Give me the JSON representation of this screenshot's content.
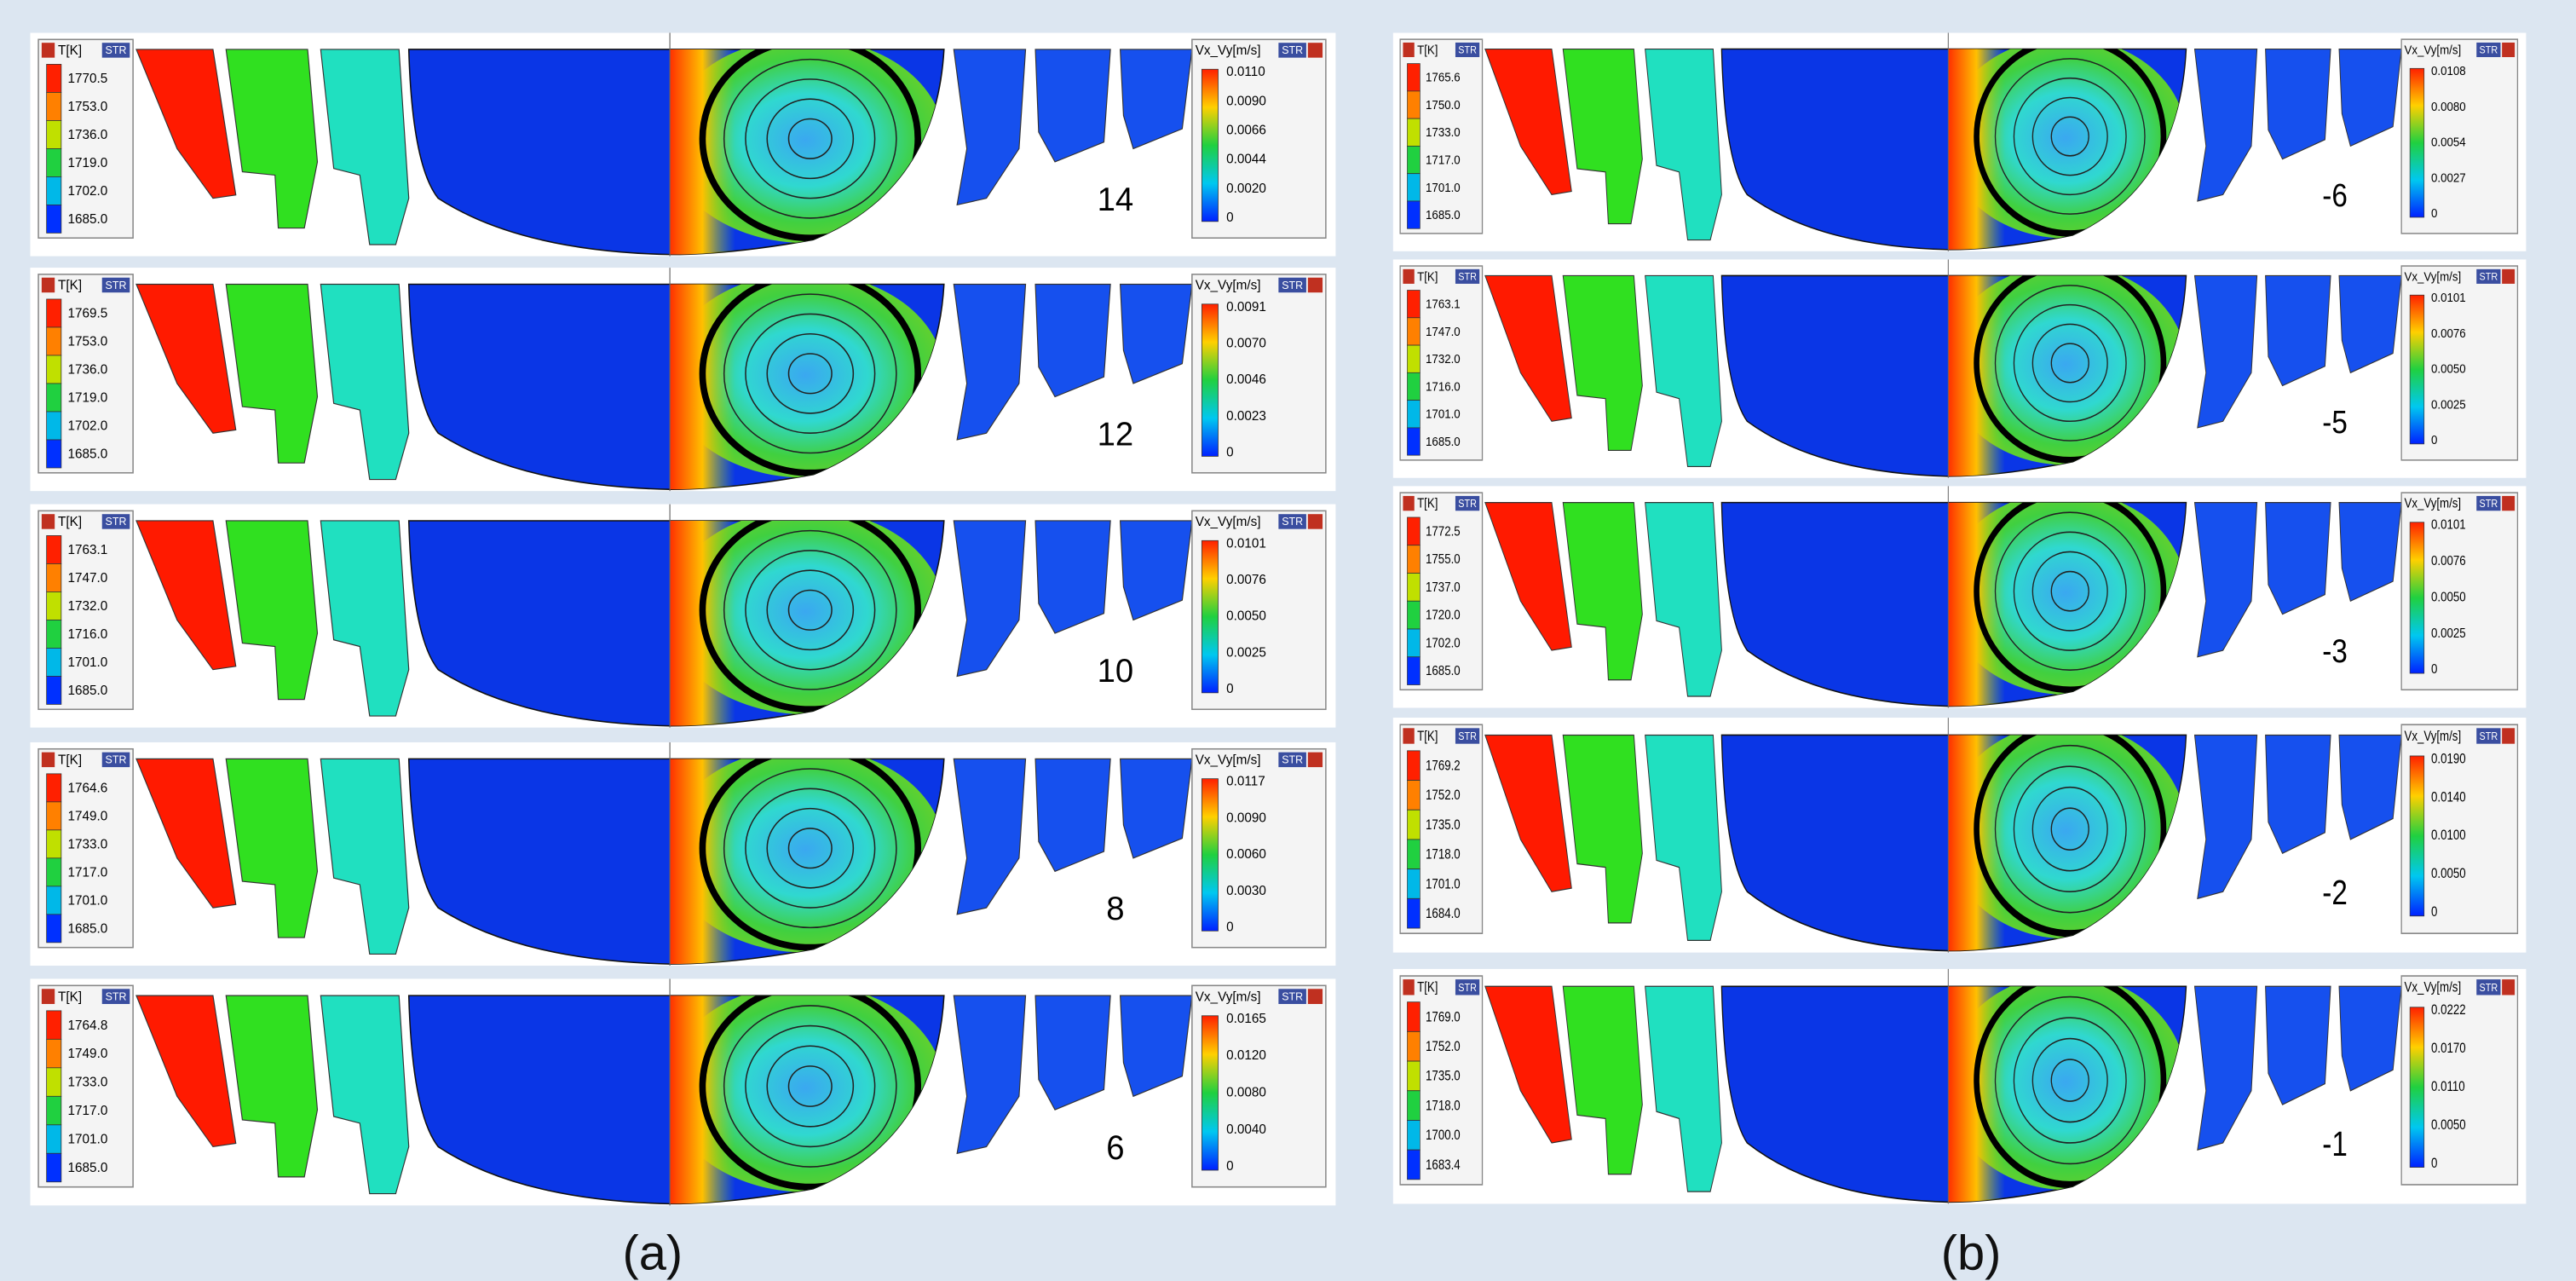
{
  "columns": [
    {
      "caption": "(a)",
      "panels": [
        {
          "label": "14",
          "temperature_legend": {
            "title": "T[K]",
            "button": "STR",
            "values": [
              "1770.5",
              "1753.0",
              "1736.0",
              "1719.0",
              "1702.0",
              "1685.0"
            ]
          },
          "velocity_legend": {
            "title": "Vx_Vy[m/s]",
            "button": "STR",
            "values": [
              "0.0110",
              "0.0090",
              "0.0066",
              "0.0044",
              "0.0020",
              "0"
            ]
          }
        },
        {
          "label": "12",
          "temperature_legend": {
            "title": "T[K]",
            "button": "STR",
            "values": [
              "1769.5",
              "1753.0",
              "1736.0",
              "1719.0",
              "1702.0",
              "1685.0"
            ]
          },
          "velocity_legend": {
            "title": "Vx_Vy[m/s]",
            "button": "STR",
            "values": [
              "0.0091",
              "0.0070",
              "0.0046",
              "0.0023",
              "0"
            ]
          }
        },
        {
          "label": "10",
          "temperature_legend": {
            "title": "T[K]",
            "button": "STR",
            "values": [
              "1763.1",
              "1747.0",
              "1732.0",
              "1716.0",
              "1701.0",
              "1685.0"
            ]
          },
          "velocity_legend": {
            "title": "Vx_Vy[m/s]",
            "button": "STR",
            "values": [
              "0.0101",
              "0.0076",
              "0.0050",
              "0.0025",
              "0"
            ]
          }
        },
        {
          "label": "8",
          "temperature_legend": {
            "title": "T[K]",
            "button": "STR",
            "values": [
              "1764.6",
              "1749.0",
              "1733.0",
              "1717.0",
              "1701.0",
              "1685.0"
            ]
          },
          "velocity_legend": {
            "title": "Vx_Vy[m/s]",
            "button": "STR",
            "values": [
              "0.0117",
              "0.0090",
              "0.0060",
              "0.0030",
              "0"
            ]
          }
        },
        {
          "label": "6",
          "temperature_legend": {
            "title": "T[K]",
            "button": "STR",
            "values": [
              "1764.8",
              "1749.0",
              "1733.0",
              "1717.0",
              "1701.0",
              "1685.0"
            ]
          },
          "velocity_legend": {
            "title": "Vx_Vy[m/s]",
            "button": "STR",
            "values": [
              "0.0165",
              "0.0120",
              "0.0080",
              "0.0040",
              "0"
            ]
          }
        }
      ]
    },
    {
      "caption": "(b)",
      "panels": [
        {
          "label": "-6",
          "temperature_legend": {
            "title": "T[K]",
            "button": "STR",
            "values": [
              "1765.6",
              "1750.0",
              "1733.0",
              "1717.0",
              "1701.0",
              "1685.0"
            ]
          },
          "velocity_legend": {
            "title": "Vx_Vy[m/s]",
            "button": "STR",
            "values": [
              "0.0108",
              "0.0080",
              "0.0054",
              "0.0027",
              "0"
            ]
          }
        },
        {
          "label": "-5",
          "temperature_legend": {
            "title": "T[K]",
            "button": "STR",
            "values": [
              "1763.1",
              "1747.0",
              "1732.0",
              "1716.0",
              "1701.0",
              "1685.0"
            ]
          },
          "velocity_legend": {
            "title": "Vx_Vy[m/s]",
            "button": "STR",
            "values": [
              "0.0101",
              "0.0076",
              "0.0050",
              "0.0025",
              "0"
            ]
          }
        },
        {
          "label": "-3",
          "temperature_legend": {
            "title": "T[K]",
            "button": "STR",
            "values": [
              "1772.5",
              "1755.0",
              "1737.0",
              "1720.0",
              "1702.0",
              "1685.0"
            ]
          },
          "velocity_legend": {
            "title": "Vx_Vy[m/s]",
            "button": "STR",
            "values": [
              "0.0101",
              "0.0076",
              "0.0050",
              "0.0025",
              "0"
            ]
          }
        },
        {
          "label": "-2",
          "temperature_legend": {
            "title": "T[K]",
            "button": "STR",
            "values": [
              "1769.2",
              "1752.0",
              "1735.0",
              "1718.0",
              "1701.0",
              "1684.0"
            ]
          },
          "velocity_legend": {
            "title": "Vx_Vy[m/s]",
            "button": "STR",
            "values": [
              "0.0190",
              "0.0140",
              "0.0100",
              "0.0050",
              "0"
            ]
          }
        },
        {
          "label": "-1",
          "temperature_legend": {
            "title": "T[K]",
            "button": "STR",
            "values": [
              "1769.0",
              "1752.0",
              "1735.0",
              "1718.0",
              "1700.0",
              "1683.4"
            ]
          },
          "velocity_legend": {
            "title": "Vx_Vy[m/s]",
            "button": "STR",
            "values": [
              "0.0222",
              "0.0170",
              "0.0110",
              "0.0050",
              "0"
            ]
          }
        }
      ]
    }
  ]
}
